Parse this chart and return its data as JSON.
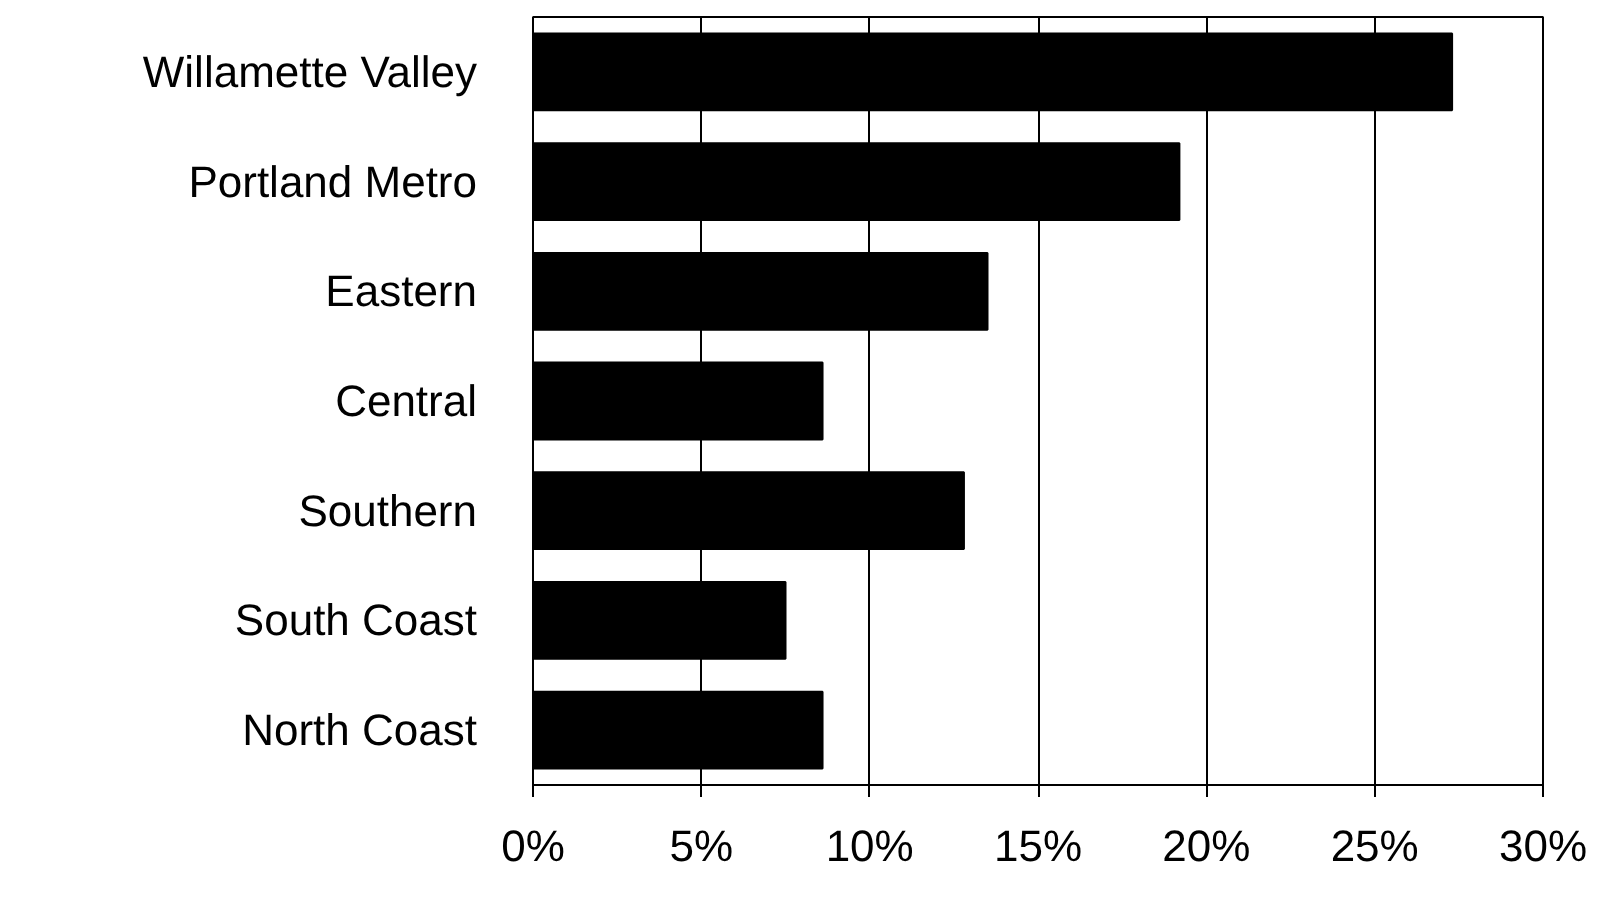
{
  "chart_data": {
    "type": "bar",
    "orientation": "horizontal",
    "categories": [
      "Willamette Valley",
      "Portland Metro",
      "Eastern",
      "Central",
      "Southern",
      "South Coast",
      "North Coast"
    ],
    "values": [
      27.3,
      19.2,
      13.5,
      8.6,
      12.8,
      7.5,
      8.6
    ],
    "color": "#000000",
    "xlim": [
      0,
      30
    ],
    "xticks": [
      {
        "value": 0,
        "label": "0%"
      },
      {
        "value": 5,
        "label": "5%"
      },
      {
        "value": 10,
        "label": "10%"
      },
      {
        "value": 15,
        "label": "15%"
      },
      {
        "value": 20,
        "label": "20%"
      },
      {
        "value": 25,
        "label": "25%"
      },
      {
        "value": 30,
        "label": "30%"
      }
    ],
    "grid": "x"
  }
}
